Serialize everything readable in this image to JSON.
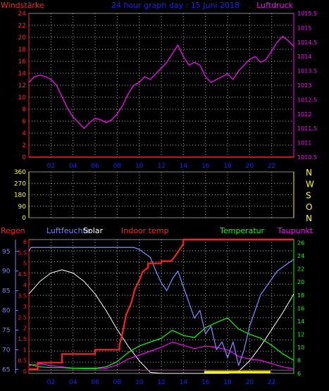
{
  "header": {
    "left_label": "Windstärke",
    "center_title": "24 hour graph day : 15 Juni 2018",
    "right_label": "Luftdruck"
  },
  "colors": {
    "background": "#000000",
    "axis_red": "#ff2020",
    "pressure_axis": "#ff00ff",
    "title_blue": "#2020ff",
    "wind_dir_yellow": "#ffff00",
    "humidity_blue": "#8080ff",
    "solar_white": "#ffffff",
    "indoor_red": "#ff2020",
    "temperature_green": "#00ff00",
    "dewpoint_magenta": "#ff00ff",
    "grid_dots": "#b0b0b0"
  },
  "chart_data": [
    {
      "type": "line",
      "panel": "top",
      "left_axis": {
        "label": "Windstärke",
        "ticks": [
          "0",
          "2",
          "4",
          "6",
          "8",
          "10",
          "12",
          "14",
          "16",
          "18",
          "20",
          "22",
          "24"
        ],
        "ylim": [
          0,
          24
        ]
      },
      "right_axis": {
        "label": "Luftdruck",
        "ticks": [
          "1010.5",
          "1011",
          "1011.5",
          "1012",
          "1012.5",
          "1013",
          "1013.5",
          "1014",
          "1014.5",
          "1015",
          "1015.5"
        ],
        "ylim": [
          1010.5,
          1015.5
        ]
      },
      "x_ticks": [
        "02",
        "04",
        "06",
        "08",
        "10",
        "12",
        "14",
        "16",
        "18",
        "20",
        "22"
      ],
      "series": [
        {
          "name": "Luftdruck",
          "color": "#ff00ff",
          "x": [
            0,
            0.5,
            1,
            1.5,
            2,
            2.5,
            3,
            3.5,
            4,
            4.5,
            5,
            5.5,
            6,
            6.5,
            7,
            7.5,
            8,
            8.5,
            9,
            9.5,
            10,
            10.5,
            11,
            11.5,
            12,
            12.5,
            13,
            13.5,
            14,
            14.5,
            15,
            15.5,
            16,
            16.5,
            17,
            17.5,
            18,
            18.5,
            19,
            19.5,
            20,
            20.5,
            21,
            21.5,
            22,
            22.5,
            23,
            23.5,
            24
          ],
          "y": [
            1013.1,
            1013.3,
            1013.35,
            1013.3,
            1013.2,
            1013.0,
            1012.6,
            1012.2,
            1011.9,
            1011.7,
            1011.5,
            1011.7,
            1011.85,
            1011.8,
            1011.7,
            1011.8,
            1012.0,
            1012.3,
            1012.7,
            1013.0,
            1013.1,
            1013.3,
            1013.2,
            1013.4,
            1013.6,
            1013.8,
            1014.1,
            1014.4,
            1014.0,
            1013.7,
            1013.8,
            1013.7,
            1013.3,
            1013.1,
            1013.2,
            1013.3,
            1013.4,
            1013.2,
            1013.5,
            1013.7,
            1013.9,
            1014.0,
            1013.8,
            1013.9,
            1014.2,
            1014.5,
            1014.7,
            1014.55,
            1014.35
          ]
        },
        {
          "name": "Windstärke",
          "color": "#ff2020",
          "x": [
            0,
            24
          ],
          "y": [
            0,
            0
          ]
        }
      ]
    },
    {
      "type": "scatter",
      "panel": "middle",
      "left_axis": {
        "ticks": [
          "0",
          "90",
          "180",
          "270",
          "360"
        ],
        "ylim": [
          0,
          360
        ]
      },
      "right_axis": {
        "ticks": [
          "N",
          "W",
          "S",
          "O",
          "N"
        ]
      },
      "x_ticks": [
        "02",
        "04",
        "06",
        "08",
        "10",
        "12",
        "14",
        "16",
        "18",
        "20",
        "22"
      ],
      "series": [
        {
          "name": "Windrichtung",
          "color": "#ffff00",
          "x": [],
          "y": []
        }
      ]
    },
    {
      "type": "line",
      "panel": "bottom",
      "legend": [
        "Regen",
        "Luftfeuchte",
        "Solar",
        "Indoor temp",
        "Temperatur",
        "Taupunkt"
      ],
      "rain_axis": {
        "label": "Regen",
        "ticks": [
          "0",
          "0.5",
          "1",
          "1.5",
          "2",
          "2.5",
          "3",
          "3.5",
          "4",
          "4.5",
          "5",
          "5.5",
          "6"
        ],
        "ylim": [
          0,
          6
        ]
      },
      "humidity_axis": {
        "label": "Luftfeuchte",
        "ticks": [
          "65",
          "70",
          "75",
          "80",
          "85",
          "90",
          "95"
        ],
        "ylim": [
          64,
          98
        ]
      },
      "temperature_axis": {
        "label": "Temperatur",
        "ticks": [
          "6",
          "8",
          "10",
          "12",
          "14",
          "16",
          "18",
          "20",
          "22",
          "24",
          "26"
        ],
        "ylim": [
          6,
          26.5
        ]
      },
      "x_ticks": [
        "02",
        "04",
        "06",
        "08",
        "10",
        "12",
        "14",
        "16",
        "18",
        "20",
        "22"
      ],
      "series": [
        {
          "name": "Regen",
          "color": "#ff2020",
          "x": [
            0,
            0.8,
            0.8,
            3,
            3,
            6,
            6,
            8.2,
            8.2,
            8.5,
            8.8,
            9.3,
            9.6,
            10.0,
            10.3,
            10.8,
            10.8,
            12.0,
            12.0,
            12.9,
            13.2,
            13.6,
            14.0,
            14.0,
            24
          ],
          "y": [
            0.1,
            0.1,
            0.4,
            0.4,
            0.8,
            0.8,
            1.0,
            1.0,
            1.2,
            1.8,
            2.6,
            3.2,
            3.8,
            4.2,
            4.6,
            4.8,
            5.0,
            5.0,
            5.1,
            5.1,
            5.3,
            5.6,
            5.9,
            6.1,
            6.1
          ]
        },
        {
          "name": "Luftfeuchte",
          "color": "#8080ff",
          "x": [
            0,
            0.2,
            1,
            2,
            3,
            4,
            5,
            6,
            7,
            7.5,
            8,
            8.5,
            9,
            9.5,
            10,
            10.5,
            11,
            11.5,
            12,
            12.5,
            13,
            13.5,
            14,
            14.5,
            15,
            15.5,
            16,
            16.5,
            17,
            17.5,
            18,
            18.5,
            19,
            19.5,
            20,
            20.5,
            21,
            21.5,
            22,
            22.5,
            23,
            23.5,
            24
          ],
          "y": [
            95,
            96,
            96,
            96,
            96,
            96,
            96,
            96,
            96,
            96,
            96,
            96,
            96,
            96,
            95.5,
            94.5,
            93.5,
            90,
            87,
            85,
            88,
            90,
            86,
            82,
            78,
            80,
            74,
            76,
            70,
            72,
            68,
            72,
            66,
            70,
            76,
            80,
            84,
            86,
            88,
            90,
            91,
            92,
            93
          ]
        },
        {
          "name": "Solar",
          "color": "#ffffff",
          "x": [
            0,
            1,
            2,
            3,
            4,
            5,
            6,
            7,
            8,
            9,
            10,
            11,
            12,
            13,
            14,
            15,
            16,
            17,
            18,
            19,
            20,
            21,
            22,
            23,
            24
          ],
          "y": [
            3.8,
            4.4,
            4.8,
            4.95,
            4.8,
            4.4,
            3.8,
            3.0,
            2.1,
            1.3,
            0.6,
            0.05,
            0,
            0,
            0,
            0,
            0,
            0,
            0,
            0.1,
            0.6,
            1.3,
            2.1,
            2.9,
            3.8
          ]
        },
        {
          "name": "Indoor temp",
          "color": "#ff00ff",
          "x": [
            0,
            1,
            2,
            3,
            4,
            5,
            6,
            7,
            8,
            9,
            10,
            11,
            12,
            13,
            14,
            15,
            16,
            17,
            18,
            19,
            20,
            21,
            22,
            23,
            24
          ],
          "y": [
            7.2,
            7.5,
            7.2,
            7.0,
            6.8,
            6.7,
            6.7,
            6.8,
            7.3,
            8.2,
            8.8,
            9.4,
            10.0,
            10.8,
            10.3,
            9.8,
            10.2,
            10.0,
            9.6,
            8.6,
            8.2,
            8.0,
            7.5,
            7.0,
            6.7
          ]
        },
        {
          "name": "Temperatur",
          "color": "#00ff00",
          "x": [
            0,
            1,
            2,
            3,
            4,
            5,
            6,
            7,
            8,
            9,
            10,
            11,
            12,
            13,
            14,
            15,
            16,
            17,
            18,
            19,
            20,
            21,
            22,
            23,
            24
          ],
          "y": [
            7.4,
            7.0,
            6.9,
            6.9,
            6.8,
            6.8,
            6.8,
            7.0,
            7.8,
            9.2,
            10.2,
            10.8,
            11.4,
            12.6,
            11.8,
            11.5,
            13.0,
            13.8,
            14.5,
            12.8,
            12.0,
            11.4,
            10.3,
            9.0,
            8.0
          ]
        },
        {
          "name": "Taupunkt",
          "color": "#ff00ff",
          "x": [
            0,
            24
          ],
          "y": [
            6.5,
            6.5
          ]
        }
      ],
      "solar_ylim": [
        0,
        6.4
      ]
    }
  ]
}
